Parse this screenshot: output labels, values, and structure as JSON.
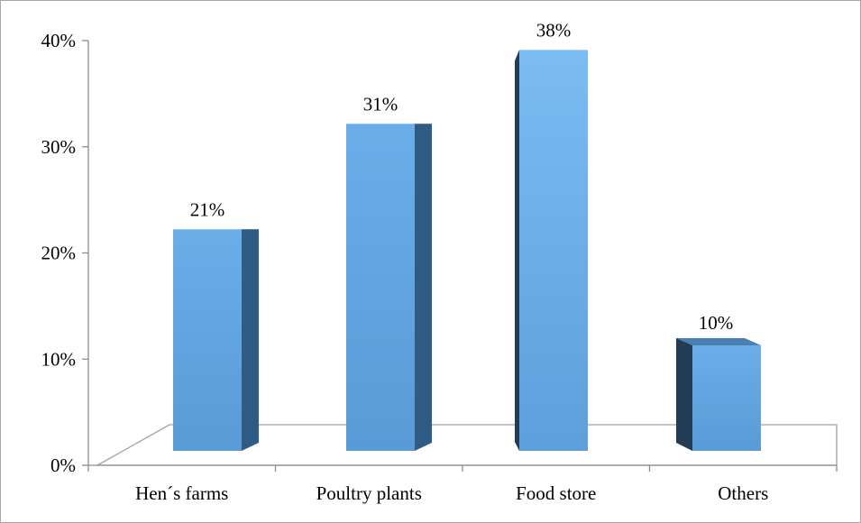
{
  "chart_data": {
    "type": "bar",
    "title": "",
    "xlabel": "",
    "ylabel": "",
    "categories": [
      "Hen´s farms",
      "Poultry plants",
      "Food store",
      "Others"
    ],
    "values": [
      21,
      31,
      38,
      10
    ],
    "data_labels": [
      "21%",
      "31%",
      "38%",
      "10%"
    ],
    "y_ticks": [
      {
        "value": 0,
        "label": "0%"
      },
      {
        "value": 10,
        "label": "10%"
      },
      {
        "value": 20,
        "label": "20%"
      },
      {
        "value": 30,
        "label": "30%"
      },
      {
        "value": 40,
        "label": "40%"
      }
    ],
    "ylim": [
      0,
      40
    ],
    "grid": false,
    "legend": "none",
    "style": "3d-column",
    "colors": {
      "bar_front": "#5b9bd5",
      "bar_front_light": "#6fb0ec",
      "bar_side": "#2e5c85",
      "bar_side_dark": "#223c55",
      "bar_top": "#4a7fb0",
      "axis": "#8c8c8c"
    }
  }
}
